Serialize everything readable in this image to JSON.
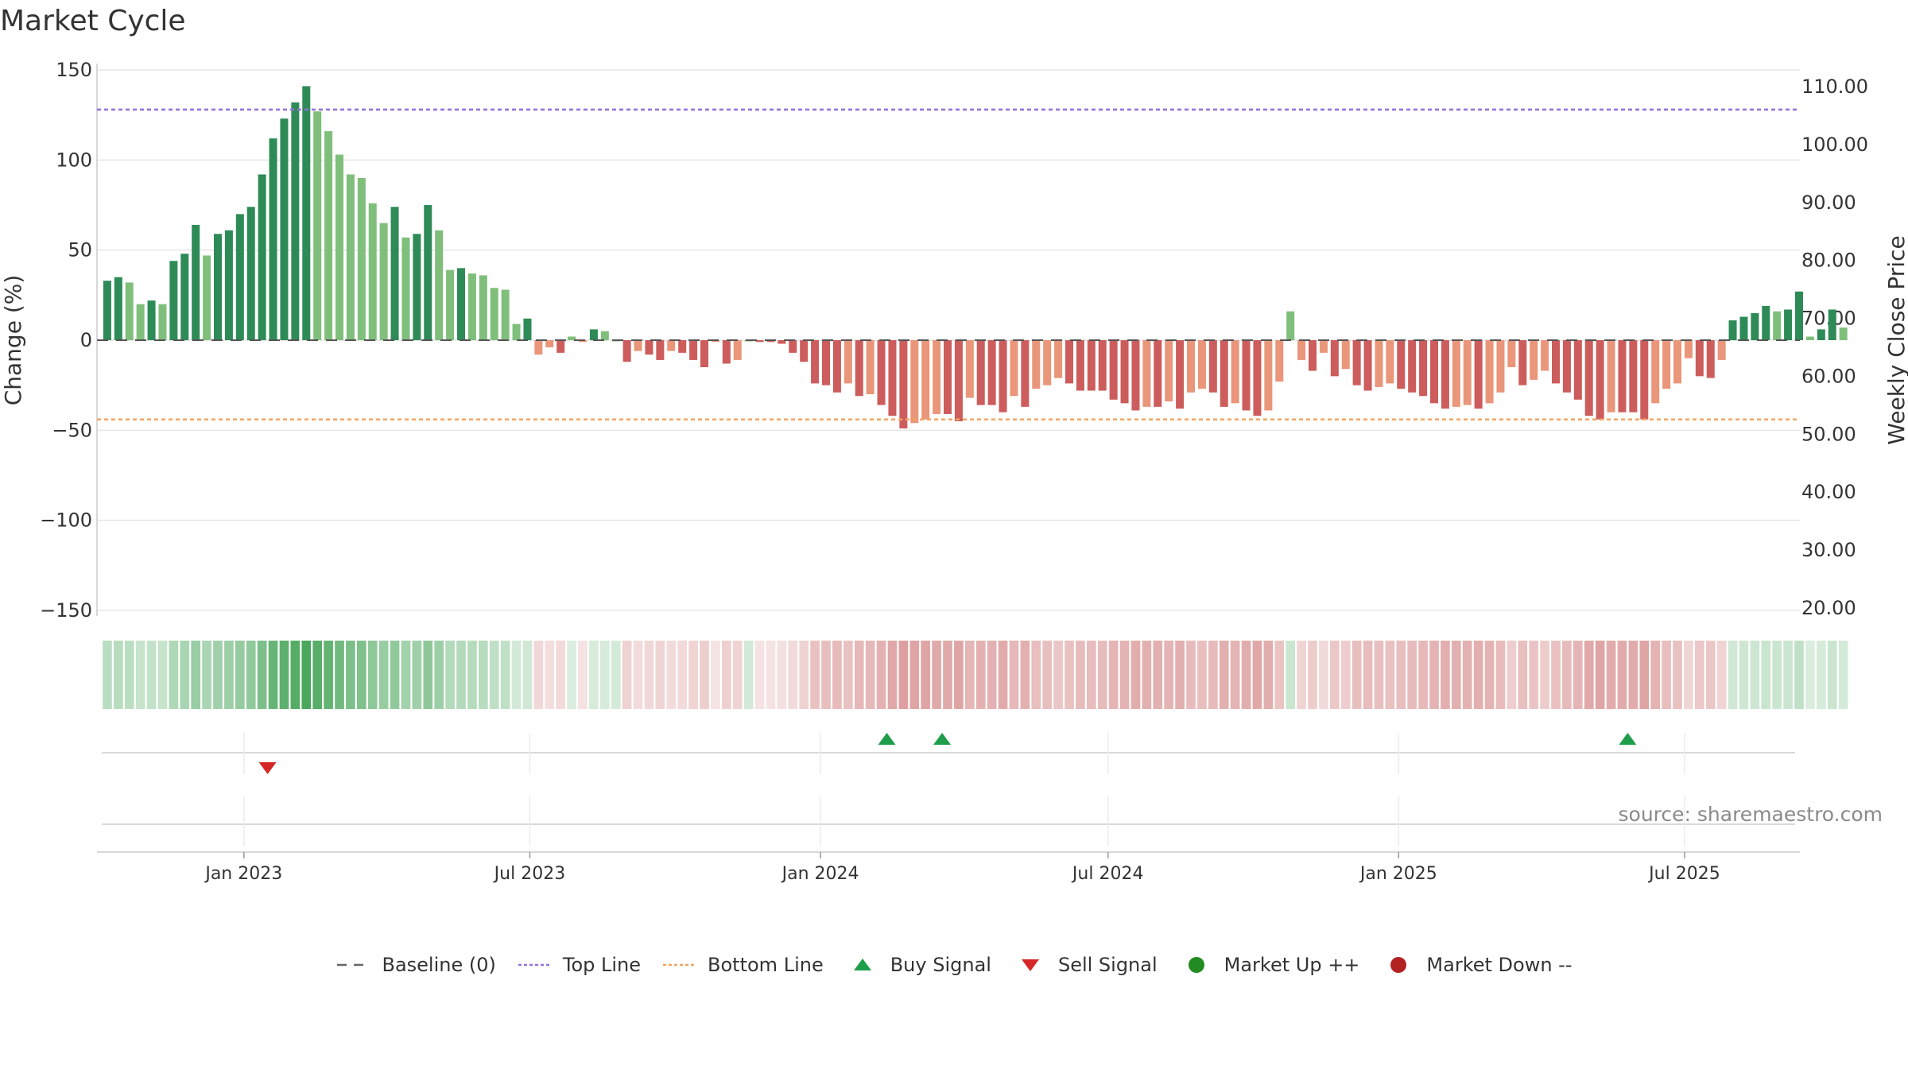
{
  "title": "Market Cycle",
  "source": "source: sharemaestro.com",
  "colors": {
    "up_strong": "#2e8b57",
    "up_light": "#7fbf7b",
    "down_strong": "#cd5c5c",
    "down_light": "#e9967a",
    "top_line": "#9370db",
    "bottom_line": "#f4a460",
    "buy": "#1e9e4a",
    "sell": "#d62728",
    "market_up": "#228b22",
    "market_down": "#b22222"
  },
  "legend": [
    {
      "label": "Baseline (0)",
      "icon": "dash-line-icon",
      "color": "#666666"
    },
    {
      "label": "Top Line",
      "icon": "dotted-line-icon",
      "color": "#9370db"
    },
    {
      "label": "Bottom Line",
      "icon": "dotted-line-icon",
      "color": "#f4a460"
    },
    {
      "label": "Buy Signal",
      "icon": "triangle-up-icon",
      "color": "#1e9e4a"
    },
    {
      "label": "Sell Signal",
      "icon": "triangle-down-icon",
      "color": "#d62728"
    },
    {
      "label": "Market Up ++",
      "icon": "circle-icon",
      "color": "#228b22"
    },
    {
      "label": "Market Down --",
      "icon": "circle-icon",
      "color": "#b22222"
    }
  ],
  "chart_data": {
    "type": "bar",
    "ylabel": "Change (%)",
    "y2label": "Weekly Close Price",
    "ylim": [
      -150,
      150
    ],
    "y2lim": [
      20,
      110
    ],
    "yticks": [
      150,
      100,
      50,
      0,
      -50,
      -100,
      -150
    ],
    "ytick_labels": [
      "150",
      "100",
      "50",
      "0",
      "−50",
      "−100",
      "−150"
    ],
    "y2ticks": [
      110,
      100,
      90,
      80,
      70,
      60,
      50,
      40,
      30,
      20
    ],
    "y2tick_labels": [
      "110.00",
      "100.00",
      "90.00",
      "80.00",
      "70.00",
      "60.00",
      "50.00",
      "40.00",
      "30.00",
      "20.00"
    ],
    "xlim": [
      "2022-09-30",
      "2025-09-12"
    ],
    "xticks": [
      "2023-01-01",
      "2023-07-01",
      "2024-01-01",
      "2024-07-01",
      "2025-01-01",
      "2025-07-01"
    ],
    "xtick_labels": [
      "Jan 2023",
      "Jul 2023",
      "Jan 2024",
      "Jul 2024",
      "Jan 2025",
      "Jul 2025"
    ],
    "grid": true,
    "legend_position": "bottom-center",
    "top_line": 128,
    "bottom_line": -44,
    "baseline": 0,
    "start_week": "2022-10-03",
    "values": [
      33,
      35,
      32,
      20,
      22,
      20,
      44,
      48,
      64,
      47,
      59,
      61,
      70,
      74,
      92,
      112,
      123,
      132,
      141,
      127,
      116,
      103,
      92,
      90,
      76,
      65,
      74,
      57,
      59,
      75,
      61,
      39,
      40,
      37,
      36,
      29,
      28,
      9,
      12,
      -8,
      -4,
      -7,
      2,
      -1,
      6,
      5,
      0,
      -12,
      -6,
      -8,
      -11,
      -6,
      -7,
      -11,
      -15,
      -1,
      -13,
      -11,
      0,
      -1,
      -1,
      -2,
      -7,
      -12,
      -24,
      -25,
      -29,
      -24,
      -31,
      -30,
      -36,
      -42,
      -49,
      -46,
      -44,
      -41,
      -41,
      -45,
      -32,
      -36,
      -36,
      -40,
      -31,
      -37,
      -27,
      -25,
      -21,
      -24,
      -28,
      -28,
      -28,
      -33,
      -35,
      -39,
      -37,
      -37,
      -34,
      -38,
      -29,
      -27,
      -29,
      -37,
      -35,
      -39,
      -42,
      -39,
      -23,
      16,
      -11,
      -17,
      -7,
      -20,
      -16,
      -25,
      -28,
      -26,
      -24,
      -27,
      -29,
      -31,
      -35,
      -38,
      -37,
      -36,
      -38,
      -35,
      -29,
      -15,
      -25,
      -22,
      -17,
      -24,
      -29,
      -33,
      -42,
      -44,
      -40,
      -40,
      -40,
      -44,
      -35,
      -27,
      -24,
      -10,
      -20,
      -21,
      -11,
      11,
      13,
      15,
      19,
      16,
      17,
      27,
      2,
      6,
      17,
      7
    ],
    "signals": [
      {
        "type": "sell",
        "date": "2023-01-16"
      },
      {
        "type": "buy",
        "date": "2024-02-12"
      },
      {
        "type": "buy",
        "date": "2024-03-18"
      },
      {
        "type": "buy",
        "date": "2025-05-26"
      }
    ]
  }
}
